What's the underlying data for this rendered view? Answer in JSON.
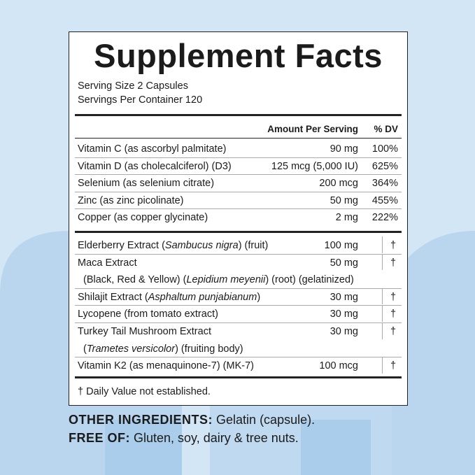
{
  "header": {
    "title": "Supplement Facts",
    "serving_size": "Serving Size 2 Capsules",
    "servings_per_container": "Servings Per Container 120"
  },
  "columns": [
    "Amount Per Serving",
    "% DV"
  ],
  "vitamins": [
    {
      "name": "Vitamin C (as ascorbyl palmitate)",
      "amount": "90 mg",
      "dv": "100%"
    },
    {
      "name": "Vitamin D (as cholecalciferol) (D3)",
      "amount": "125 mcg (5,000 IU)",
      "dv": "625%"
    },
    {
      "name": "Selenium (as selenium citrate)",
      "amount": "200 mcg",
      "dv": "364%"
    },
    {
      "name": "Zinc (as zinc picolinate)",
      "amount": "50 mg",
      "dv": "455%"
    },
    {
      "name": "Copper (as copper glycinate)",
      "amount": "2 mg",
      "dv": "222%"
    }
  ],
  "extracts": [
    {
      "name": [
        {
          "text": "Elderberry Extract (",
          "italic": false
        },
        {
          "text": "Sambucus nigra",
          "italic": true
        },
        {
          "text": ") (fruit)",
          "italic": false
        }
      ],
      "amount": "100 mg",
      "dv": "†"
    },
    {
      "name": [
        {
          "text": "Maca Extract",
          "italic": false
        }
      ],
      "sub": [
        {
          "text": "(Black, Red & Yellow) (",
          "italic": false
        },
        {
          "text": "Lepidium meyenii",
          "italic": true
        },
        {
          "text": ") (root) (gelatinized)",
          "italic": false
        }
      ],
      "amount": "50 mg",
      "dv": "†"
    },
    {
      "name": [
        {
          "text": "Shilajit Extract (",
          "italic": false
        },
        {
          "text": "Asphaltum punjabianum",
          "italic": true
        },
        {
          "text": ")",
          "italic": false
        }
      ],
      "amount": "30 mg",
      "dv": "†"
    },
    {
      "name": [
        {
          "text": "Lycopene (from tomato extract)",
          "italic": false
        }
      ],
      "amount": "30 mg",
      "dv": "†"
    },
    {
      "name": [
        {
          "text": "Turkey Tail Mushroom Extract",
          "italic": false
        }
      ],
      "sub": [
        {
          "text": "(",
          "italic": false
        },
        {
          "text": "Trametes versicolor",
          "italic": true
        },
        {
          "text": ") (fruiting body)",
          "italic": false
        }
      ],
      "amount": "30 mg",
      "dv": "†"
    },
    {
      "name": [
        {
          "text": "Vitamin K2 (as menaquinone-7) (MK-7)",
          "italic": false
        }
      ],
      "amount": "100 mcg",
      "dv": "†"
    }
  ],
  "footnote": "† Daily Value not established.",
  "other_ingredients": {
    "label": "OTHER INGREDIENTS:",
    "text": "Gelatin (capsule)."
  },
  "free_of": {
    "label": "FREE OF:",
    "text": "Gluten, soy, dairy & tree nuts."
  }
}
